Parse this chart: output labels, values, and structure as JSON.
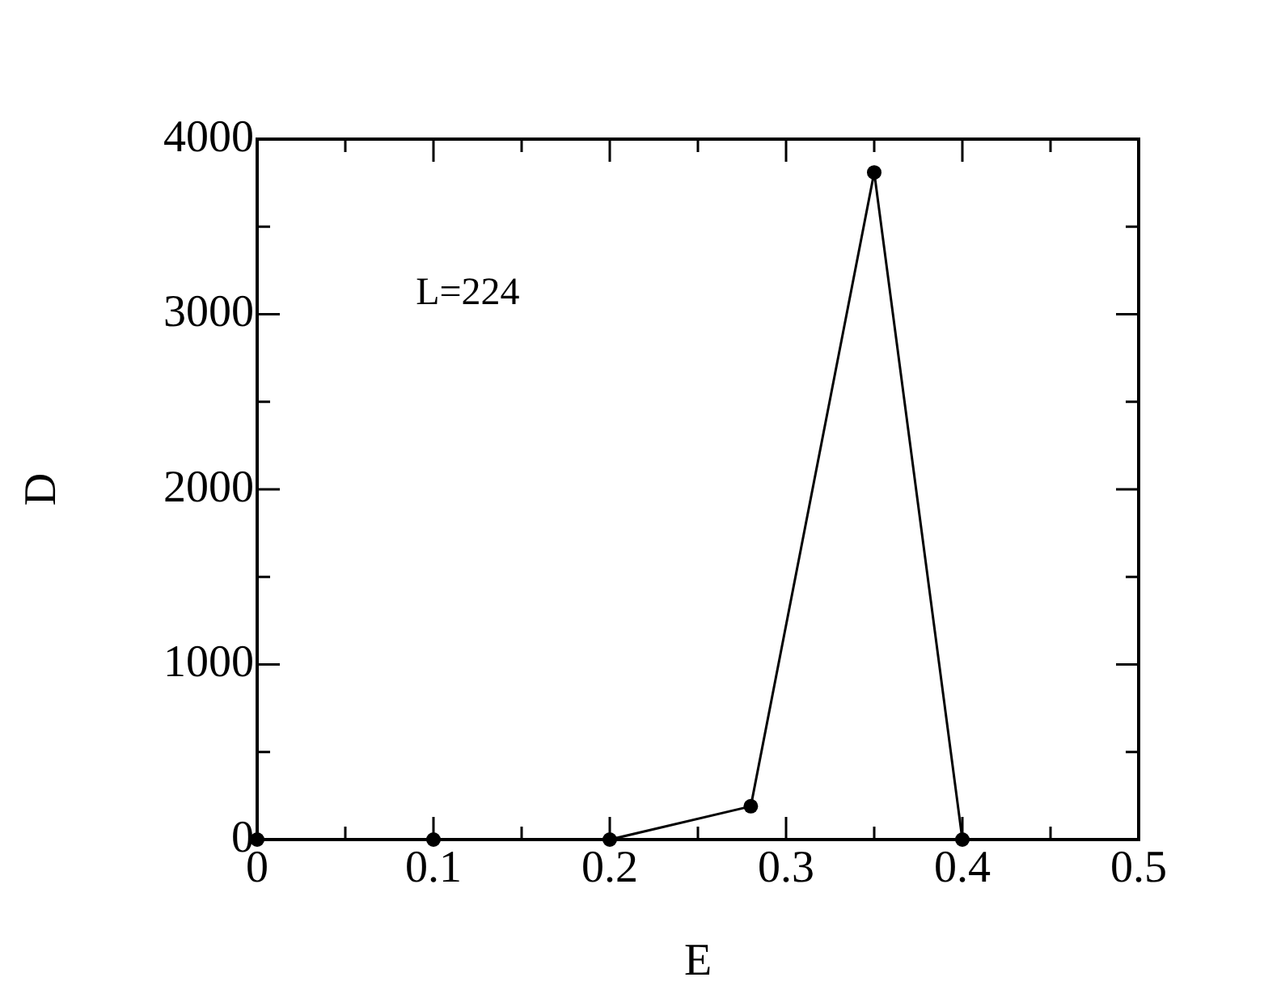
{
  "chart_data": {
    "type": "line",
    "xlabel": "E",
    "ylabel": "D",
    "annotations": [
      "L=224"
    ],
    "x": [
      0,
      0.1,
      0.2,
      0.28,
      0.35,
      0.4
    ],
    "series": [
      {
        "color": "#000000",
        "values": [
          0,
          0,
          0,
          190,
          3810,
          0
        ]
      }
    ],
    "marker": "circle",
    "line_style": "solid",
    "xlim": [
      0,
      0.5
    ],
    "xticks": [
      0,
      {
        "value": 0.05,
        "label": null
      },
      0.1,
      {
        "value": 0.15,
        "label": null
      },
      0.2,
      {
        "value": 0.25,
        "label": null
      },
      0.3,
      {
        "value": 0.35,
        "label": null
      },
      0.4,
      {
        "value": 0.45,
        "label": null
      },
      0.5
    ],
    "ylim": [
      0,
      4000
    ],
    "yticks": [
      0,
      {
        "value": 500,
        "label": null
      },
      1000,
      {
        "value": 1500,
        "label": null
      },
      2000,
      {
        "value": 2500,
        "label": null
      },
      3000,
      {
        "value": 3500,
        "label": null
      },
      4000
    ]
  }
}
